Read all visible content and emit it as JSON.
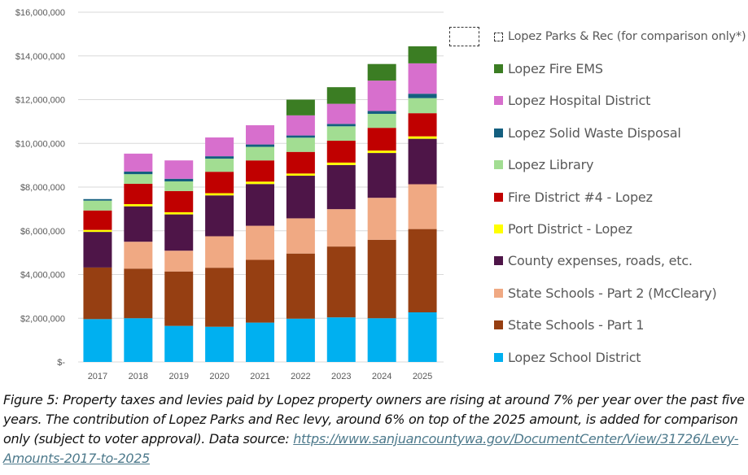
{
  "chart_data": {
    "type": "bar",
    "stacked": true,
    "title": "",
    "xlabel": "",
    "ylabel": "",
    "ylim": [
      0,
      16000000
    ],
    "yticks": [
      0,
      2000000,
      4000000,
      6000000,
      8000000,
      10000000,
      12000000,
      14000000,
      16000000
    ],
    "ytick_labels": [
      "$-",
      "$2,000,000",
      "$4,000,000",
      "$6,000,000",
      "$8,000,000",
      "$10,000,000",
      "$12,000,000",
      "$14,000,000",
      "$16,000,000"
    ],
    "grid": true,
    "legend_position": "right",
    "categories": [
      "2017",
      "2018",
      "2019",
      "2020",
      "2021",
      "2022",
      "2023",
      "2024",
      "2025"
    ],
    "series": [
      {
        "name": "Lopez School District",
        "color": "#00b0f0",
        "values": [
          1960000,
          2000000,
          1650000,
          1610000,
          1800000,
          1980000,
          2040000,
          2000000,
          2270000
        ]
      },
      {
        "name": "State Schools - Part 1",
        "color": "#963f12",
        "values": [
          2360000,
          2270000,
          2490000,
          2700000,
          2870000,
          2980000,
          3240000,
          3590000,
          3810000
        ]
      },
      {
        "name": "State Schools - Part 2 (McCleary)",
        "color": "#f0a983",
        "values": [
          0,
          1230000,
          950000,
          1440000,
          1560000,
          1610000,
          1710000,
          1920000,
          2050000
        ]
      },
      {
        "name": "County expenses, roads, etc.",
        "color": "#4e1548",
        "values": [
          1630000,
          1620000,
          1660000,
          1870000,
          1910000,
          1950000,
          2020000,
          2050000,
          2080000
        ]
      },
      {
        "name": "Port District - Lopez",
        "color": "#ffff00",
        "values": [
          90000,
          100000,
          100000,
          100000,
          110000,
          100000,
          110000,
          110000,
          110000
        ]
      },
      {
        "name": "Fire District #4 - Lopez",
        "color": "#c00000",
        "values": [
          890000,
          930000,
          970000,
          980000,
          970000,
          990000,
          1000000,
          1040000,
          1060000
        ]
      },
      {
        "name": "Lopez Library",
        "color": "#a2dd92",
        "values": [
          450000,
          440000,
          440000,
          600000,
          620000,
          650000,
          660000,
          640000,
          690000
        ]
      },
      {
        "name": "Lopez Solid Waste Disposal",
        "color": "#145f7f",
        "values": [
          70000,
          120000,
          120000,
          110000,
          110000,
          100000,
          110000,
          130000,
          200000
        ]
      },
      {
        "name": "Lopez Hospital District",
        "color": "#d76fcd",
        "values": [
          0,
          820000,
          840000,
          860000,
          880000,
          920000,
          920000,
          1390000,
          1390000
        ]
      },
      {
        "name": "Lopez Fire EMS",
        "color": "#3b7d23",
        "values": [
          0,
          0,
          0,
          0,
          0,
          720000,
          760000,
          760000,
          780000
        ]
      }
    ],
    "legend": [
      {
        "name": "Lopez Parks & Rec (for comparison only*)",
        "style": "dashed"
      },
      {
        "name": "Lopez Fire EMS",
        "color": "#3b7d23"
      },
      {
        "name": "Lopez Hospital District",
        "color": "#d76fcd"
      },
      {
        "name": "Lopez Solid Waste Disposal",
        "color": "#145f7f"
      },
      {
        "name": "Lopez Library",
        "color": "#a2dd92"
      },
      {
        "name": "Fire District #4 - Lopez",
        "color": "#c00000"
      },
      {
        "name": "Port District - Lopez",
        "color": "#ffff00"
      },
      {
        "name": "County expenses, roads, etc.",
        "color": "#4e1548"
      },
      {
        "name": "State Schools - Part 2 (McCleary)",
        "color": "#f0a983"
      },
      {
        "name": "State Schools - Part 1",
        "color": "#963f12"
      },
      {
        "name": "Lopez School District",
        "color": "#00b0f0"
      }
    ]
  },
  "caption": {
    "text": "Figure 5: Property taxes and levies paid by Lopez property owners are rising at around 7% per year over the past five years. The contribution of Lopez Parks and Rec levy, around 6% on top of the 2025 amount, is added for comparison only (subject to voter approval). Data source: ",
    "link_text": "https://www.sanjuancountywa.gov/DocumentCenter/View/31726/Levy-Amounts-2017-to-2025"
  }
}
